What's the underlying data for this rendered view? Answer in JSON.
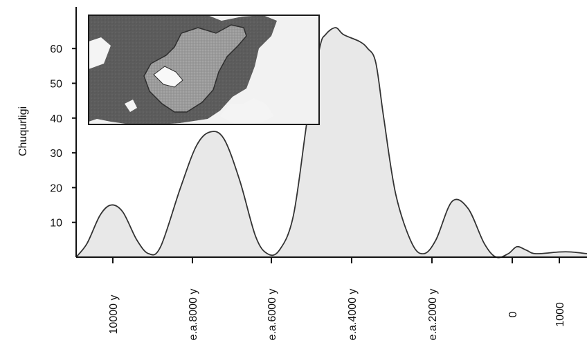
{
  "chart_data": {
    "type": "area",
    "ylabel": "Chuqurligi",
    "ylim": [
      0,
      70
    ],
    "yticks": [
      10,
      20,
      30,
      40,
      50,
      60
    ],
    "x_axis": "time (labels printed on axis)",
    "xticks": [
      {
        "x": -10000,
        "label": "10000 y"
      },
      {
        "x": -8000,
        "label": "e.a.8000 y"
      },
      {
        "x": -6000,
        "label": "e.a.6000 y"
      },
      {
        "x": -4000,
        "label": "e.a.4000 y"
      },
      {
        "x": -2000,
        "label": "e.a.2000 y"
      },
      {
        "x": 0,
        "label": "0"
      },
      {
        "x": 1000,
        "label": "1000"
      }
    ],
    "xlim": [
      -11000,
      1700
    ],
    "series": [
      {
        "points": [
          [
            -11000,
            0
          ],
          [
            -10700,
            4
          ],
          [
            -10350,
            12
          ],
          [
            -10050,
            15
          ],
          [
            -9750,
            13
          ],
          [
            -9400,
            5
          ],
          [
            -9100,
            1
          ],
          [
            -8800,
            3
          ],
          [
            -8300,
            20
          ],
          [
            -7900,
            32
          ],
          [
            -7550,
            36
          ],
          [
            -7200,
            34
          ],
          [
            -6800,
            22
          ],
          [
            -6400,
            6
          ],
          [
            -6100,
            1
          ],
          [
            -5800,
            2
          ],
          [
            -5450,
            12
          ],
          [
            -5100,
            40
          ],
          [
            -4800,
            60
          ],
          [
            -4650,
            64
          ],
          [
            -4400,
            66
          ],
          [
            -4200,
            64
          ],
          [
            -3800,
            62
          ],
          [
            -3600,
            60
          ],
          [
            -3400,
            56
          ],
          [
            -3200,
            40
          ],
          [
            -2900,
            18
          ],
          [
            -2500,
            4
          ],
          [
            -2200,
            1
          ],
          [
            -1900,
            5
          ],
          [
            -1500,
            16
          ],
          [
            -1100,
            14
          ],
          [
            -700,
            4
          ],
          [
            -400,
            0
          ],
          [
            -100,
            1
          ],
          [
            100,
            3
          ],
          [
            300,
            2
          ],
          [
            500,
            1
          ],
          [
            1000,
            1.5
          ],
          [
            1300,
            1.5
          ],
          [
            1700,
            1
          ]
        ]
      }
    ],
    "fill_color": "#e8e8e8",
    "line_color": "#333333"
  },
  "inset": {
    "description_icon": "lake-map-inset-image"
  }
}
